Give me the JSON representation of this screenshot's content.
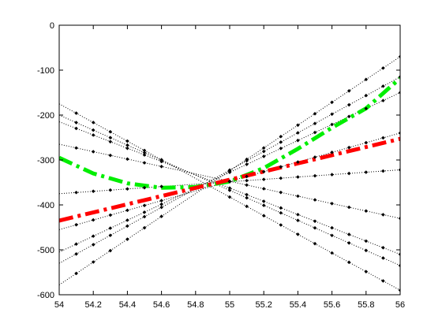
{
  "chart_data": {
    "type": "line",
    "title": "",
    "xlabel": "",
    "ylabel": "",
    "xlim": [
      54,
      56
    ],
    "ylim": [
      -600,
      0
    ],
    "grid": false,
    "legend": "none",
    "xticks": [
      54,
      54.2,
      54.4,
      54.6,
      54.8,
      55,
      55.2,
      55.4,
      55.6,
      55.8,
      56
    ],
    "xtick_labels": [
      "54",
      "54.2",
      "54.4",
      "54.6",
      "54.8",
      "55",
      "55.2",
      "55.4",
      "55.6",
      "55.8",
      "56"
    ],
    "yticks": [
      0,
      -100,
      -200,
      -300,
      -400,
      -500,
      -600
    ],
    "ytick_labels": [
      "0",
      "-100",
      "-200",
      "-300",
      "-400",
      "-500",
      "-600"
    ],
    "series": [
      {
        "style": "dash-dot",
        "color": "#00ee00",
        "width": 5,
        "x": [
          54,
          54.2,
          54.4,
          54.6,
          54.8,
          55,
          55.2,
          55.4,
          55.6,
          55.8,
          56
        ],
        "y": [
          -295,
          -330,
          -352,
          -362,
          -360,
          -348,
          -318,
          -275,
          -228,
          -185,
          -118
        ]
      },
      {
        "style": "dash-dot",
        "color": "#ff0000",
        "width": 5,
        "x": [
          54,
          56
        ],
        "y": [
          -435,
          -253
        ]
      },
      {
        "style": "dotted",
        "color": "#000000",
        "width": 1,
        "x": [
          54,
          56
        ],
        "y": [
          -175,
          -590
        ]
      },
      {
        "style": "dotted",
        "color": "#000000",
        "width": 1,
        "x": [
          54,
          56
        ],
        "y": [
          -200,
          -535
        ]
      },
      {
        "style": "dotted",
        "color": "#000000",
        "width": 1,
        "x": [
          54,
          56
        ],
        "y": [
          -215,
          -510
        ]
      },
      {
        "style": "dotted",
        "color": "#000000",
        "width": 1,
        "x": [
          54,
          56
        ],
        "y": [
          -265,
          -430
        ]
      },
      {
        "style": "dotted",
        "color": "#000000",
        "width": 1,
        "x": [
          54,
          56
        ],
        "y": [
          -375,
          -322
        ]
      },
      {
        "style": "dotted",
        "color": "#000000",
        "width": 1,
        "x": [
          54,
          56
        ],
        "y": [
          -455,
          -240
        ]
      },
      {
        "style": "dotted",
        "color": "#000000",
        "width": 1,
        "x": [
          54,
          56
        ],
        "y": [
          -505,
          -150
        ]
      },
      {
        "style": "dotted",
        "color": "#000000",
        "width": 1,
        "x": [
          54,
          56
        ],
        "y": [
          -530,
          -115
        ]
      },
      {
        "style": "dotted",
        "color": "#000000",
        "width": 1,
        "x": [
          54,
          56
        ],
        "y": [
          -578,
          -70
        ]
      }
    ],
    "markers": {
      "color": "#000000",
      "x": [
        54.1,
        54.2,
        54.3,
        54.4,
        54.5,
        54.6,
        55,
        55.1,
        55.2,
        55.3,
        55.4,
        55.5,
        55.6,
        55.7,
        55.8,
        55.9,
        56
      ]
    }
  }
}
